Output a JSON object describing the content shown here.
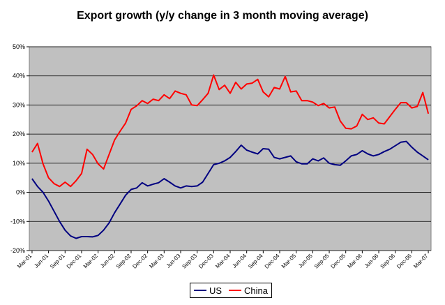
{
  "chart_data": {
    "type": "line",
    "title": "Export growth (y/y change in 3 month moving average)",
    "xlabel": "",
    "ylabel": "",
    "ylim": [
      -0.2,
      0.5
    ],
    "yticks": [
      "-20%",
      "-10%",
      "0%",
      "10%",
      "20%",
      "30%",
      "40%",
      "50%"
    ],
    "grid": true,
    "legend_position": "bottom",
    "plot_background": "#c0c0c0",
    "x_tick_labels": [
      "Mar-01",
      "Jun-01",
      "Sep-01",
      "Dec-01",
      "Mar-02",
      "Jun-02",
      "Sep-02",
      "Dec-02",
      "Mar-03",
      "Jun-03",
      "Sep-03",
      "Dec-03",
      "Mar-04",
      "Jun-04",
      "Sep-04",
      "Dec-04",
      "Mar-05",
      "Jun-05",
      "Sep-05",
      "Dec-05",
      "Mar-06",
      "Jun-06",
      "Sep-06",
      "Dec-06",
      "Mar-07"
    ],
    "x": [
      "Mar-01",
      "Apr-01",
      "May-01",
      "Jun-01",
      "Jul-01",
      "Aug-01",
      "Sep-01",
      "Oct-01",
      "Nov-01",
      "Dec-01",
      "Jan-02",
      "Feb-02",
      "Mar-02",
      "Apr-02",
      "May-02",
      "Jun-02",
      "Jul-02",
      "Aug-02",
      "Sep-02",
      "Oct-02",
      "Nov-02",
      "Dec-02",
      "Jan-03",
      "Feb-03",
      "Mar-03",
      "Apr-03",
      "May-03",
      "Jun-03",
      "Jul-03",
      "Aug-03",
      "Sep-03",
      "Oct-03",
      "Nov-03",
      "Dec-03",
      "Jan-04",
      "Feb-04",
      "Mar-04",
      "Apr-04",
      "May-04",
      "Jun-04",
      "Jul-04",
      "Aug-04",
      "Sep-04",
      "Oct-04",
      "Nov-04",
      "Dec-04",
      "Jan-05",
      "Feb-05",
      "Mar-05",
      "Apr-05",
      "May-05",
      "Jun-05",
      "Jul-05",
      "Aug-05",
      "Sep-05",
      "Oct-05",
      "Nov-05",
      "Dec-05",
      "Jan-06",
      "Feb-06",
      "Mar-06",
      "Apr-06",
      "May-06",
      "Jun-06",
      "Jul-06",
      "Aug-06",
      "Sep-06",
      "Oct-06",
      "Nov-06",
      "Dec-06",
      "Jan-07",
      "Feb-07",
      "Mar-07"
    ],
    "series": [
      {
        "name": "US",
        "color": "#000080",
        "values": [
          0.047,
          0.02,
          0.0,
          -0.03,
          -0.065,
          -0.1,
          -0.13,
          -0.15,
          -0.158,
          -0.152,
          -0.152,
          -0.153,
          -0.148,
          -0.13,
          -0.105,
          -0.07,
          -0.04,
          -0.01,
          0.01,
          0.015,
          0.033,
          0.022,
          0.028,
          0.033,
          0.047,
          0.035,
          0.022,
          0.015,
          0.022,
          0.02,
          0.022,
          0.035,
          0.065,
          0.095,
          0.1,
          0.108,
          0.12,
          0.14,
          0.162,
          0.145,
          0.138,
          0.132,
          0.15,
          0.148,
          0.12,
          0.115,
          0.12,
          0.125,
          0.105,
          0.098,
          0.098,
          0.115,
          0.108,
          0.118,
          0.1,
          0.095,
          0.093,
          0.108,
          0.125,
          0.13,
          0.143,
          0.132,
          0.125,
          0.13,
          0.14,
          0.148,
          0.16,
          0.172,
          0.175,
          0.155,
          0.138,
          0.125,
          0.112
        ]
      },
      {
        "name": "China",
        "color": "#ff0000",
        "values": [
          0.138,
          0.168,
          0.098,
          0.05,
          0.03,
          0.02,
          0.035,
          0.02,
          0.04,
          0.065,
          0.148,
          0.13,
          0.098,
          0.08,
          0.13,
          0.18,
          0.21,
          0.238,
          0.285,
          0.297,
          0.315,
          0.305,
          0.32,
          0.315,
          0.335,
          0.322,
          0.348,
          0.34,
          0.335,
          0.3,
          0.298,
          0.318,
          0.34,
          0.403,
          0.353,
          0.368,
          0.34,
          0.378,
          0.355,
          0.372,
          0.375,
          0.388,
          0.345,
          0.328,
          0.36,
          0.355,
          0.398,
          0.345,
          0.348,
          0.315,
          0.315,
          0.31,
          0.298,
          0.305,
          0.29,
          0.293,
          0.245,
          0.22,
          0.218,
          0.228,
          0.268,
          0.25,
          0.256,
          0.238,
          0.235,
          0.26,
          0.285,
          0.308,
          0.308,
          0.29,
          0.295,
          0.343,
          0.27
        ]
      }
    ]
  }
}
